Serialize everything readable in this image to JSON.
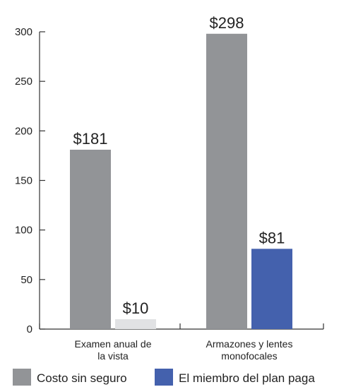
{
  "chart_data": {
    "type": "bar",
    "ylim": [
      0,
      300
    ],
    "yticks": [
      0,
      50,
      100,
      150,
      200,
      250,
      300
    ],
    "categories": [
      [
        "Examen anual de",
        "la vista"
      ],
      [
        "Armazones y lentes",
        "monofocales"
      ]
    ],
    "series": [
      {
        "name": "Costo sin seguro",
        "values": [
          181,
          298
        ],
        "labels": [
          "$181",
          "$298"
        ],
        "color": "#929497",
        "colors": [
          "#929497",
          "#929497"
        ]
      },
      {
        "name": "El miembro del plan paga",
        "values": [
          10,
          81
        ],
        "labels": [
          "$10",
          "$81"
        ],
        "color": "#4461ad",
        "colors": [
          "#e1e2e4",
          "#4461ad"
        ]
      }
    ],
    "legend_position": "bottom"
  }
}
